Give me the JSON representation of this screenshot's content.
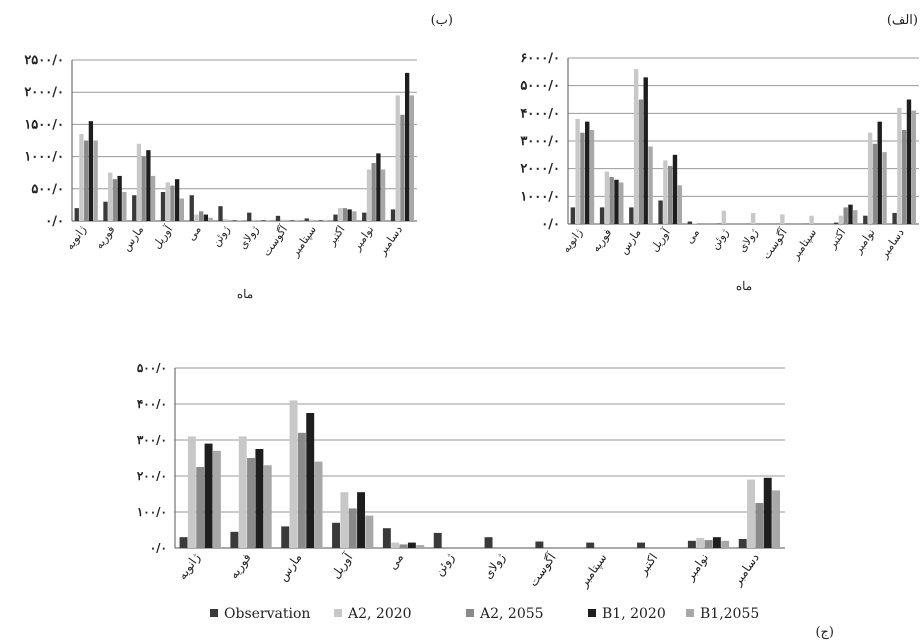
{
  "chart_data": [
    {
      "panel_label": "(الف)",
      "type": "bar",
      "xlabel": "ماه",
      "ylabel": "",
      "ylim": [
        0,
        6000
      ],
      "yticks": [
        "۰/۰",
        "۱۰۰۰/۰",
        "۲۰۰۰/۰",
        "۳۰۰۰/۰",
        "۴۰۰۰/۰",
        "۵۰۰۰/۰",
        "۶۰۰۰/۰"
      ],
      "grid": true,
      "categories": [
        "ژانویه",
        "فوریه",
        "مارس",
        "آوریل",
        "می",
        "ژوئن",
        "ژولای",
        "آگوست",
        "سپتامبر",
        "اکتبر",
        "نوامبر",
        "دسامبر"
      ],
      "series": [
        {
          "name": "Observation",
          "color": "#3a3a3a",
          "values": [
            600,
            600,
            600,
            850,
            90,
            20,
            10,
            10,
            10,
            50,
            300,
            400
          ]
        },
        {
          "name": "A2, 2020",
          "color": "#c8c8c8",
          "values": [
            3800,
            1900,
            5600,
            2300,
            20,
            480,
            400,
            350,
            300,
            300,
            3300,
            4200
          ]
        },
        {
          "name": "A2, 2055",
          "color": "#8a8a8a",
          "values": [
            3300,
            1700,
            4500,
            2100,
            0,
            0,
            0,
            0,
            0,
            600,
            2900,
            3400
          ]
        },
        {
          "name": "B1, 2020",
          "color": "#1e1e1e",
          "values": [
            3700,
            1600,
            5300,
            2500,
            0,
            0,
            0,
            0,
            0,
            700,
            3700,
            4500
          ]
        },
        {
          "name": "B1,2055",
          "color": "#a8a8a8",
          "values": [
            3400,
            1500,
            2800,
            1400,
            0,
            0,
            0,
            0,
            0,
            500,
            2600,
            4100
          ]
        }
      ]
    },
    {
      "panel_label": "(ب)",
      "type": "bar",
      "xlabel": "ماه",
      "ylabel": "",
      "ylim": [
        0,
        2500
      ],
      "yticks": [
        "۰/۰",
        "۵۰۰/۰",
        "۱۰۰۰/۰",
        "۱۵۰۰/۰",
        "۲۰۰۰/۰",
        "۲۵۰۰/۰"
      ],
      "grid": true,
      "categories": [
        "ژانویه",
        "فوریه",
        "مارس",
        "آوریل",
        "می",
        "ژوئن",
        "ژولای",
        "آگوست",
        "سپتامبر",
        "اکتبر",
        "نوامبر",
        "دسامبر"
      ],
      "series": [
        {
          "name": "Observation",
          "color": "#3a3a3a",
          "values": [
            200,
            300,
            400,
            450,
            400,
            230,
            130,
            80,
            40,
            100,
            130,
            180
          ]
        },
        {
          "name": "A2, 2020",
          "color": "#c8c8c8",
          "values": [
            1350,
            750,
            1200,
            600,
            100,
            30,
            20,
            20,
            20,
            200,
            800,
            1950
          ]
        },
        {
          "name": "A2, 2055",
          "color": "#8a8a8a",
          "values": [
            1250,
            650,
            1000,
            550,
            150,
            10,
            10,
            10,
            10,
            200,
            900,
            1650
          ]
        },
        {
          "name": "B1, 2020",
          "color": "#1e1e1e",
          "values": [
            1550,
            700,
            1100,
            650,
            100,
            10,
            10,
            10,
            10,
            180,
            1050,
            2300
          ]
        },
        {
          "name": "B1,2055",
          "color": "#a8a8a8",
          "values": [
            1250,
            450,
            700,
            350,
            50,
            10,
            10,
            10,
            10,
            150,
            800,
            1950
          ]
        }
      ]
    },
    {
      "panel_label": "(ج)",
      "type": "bar",
      "xlabel": "",
      "ylabel": "",
      "ylim": [
        0,
        500
      ],
      "yticks": [
        "۰/۰",
        "۱۰۰/۰",
        "۲۰۰/۰",
        "۳۰۰/۰",
        "۴۰۰/۰",
        "۵۰۰/۰"
      ],
      "grid": true,
      "legend": "bottom",
      "categories": [
        "ژانویه",
        "فوریه",
        "مارس",
        "آوریل",
        "می",
        "ژوئن",
        "ژولای",
        "آگوست",
        "سپتامبر",
        "اکتبر",
        "نوامبر",
        "دسامبر"
      ],
      "series": [
        {
          "name": "Observation",
          "color": "#3a3a3a",
          "values": [
            30,
            45,
            60,
            70,
            55,
            42,
            30,
            18,
            15,
            15,
            20,
            25
          ]
        },
        {
          "name": "A2, 2020",
          "color": "#c8c8c8",
          "values": [
            310,
            310,
            410,
            155,
            15,
            0,
            0,
            0,
            0,
            0,
            28,
            190
          ]
        },
        {
          "name": "A2, 2055",
          "color": "#8a8a8a",
          "values": [
            225,
            250,
            320,
            110,
            10,
            0,
            0,
            0,
            0,
            0,
            22,
            125
          ]
        },
        {
          "name": "B1, 2020",
          "color": "#1e1e1e",
          "values": [
            290,
            275,
            375,
            155,
            15,
            0,
            0,
            0,
            0,
            0,
            30,
            195
          ]
        },
        {
          "name": "B1,2055",
          "color": "#a8a8a8",
          "values": [
            270,
            230,
            240,
            90,
            8,
            0,
            0,
            0,
            0,
            0,
            20,
            160
          ]
        }
      ]
    }
  ]
}
